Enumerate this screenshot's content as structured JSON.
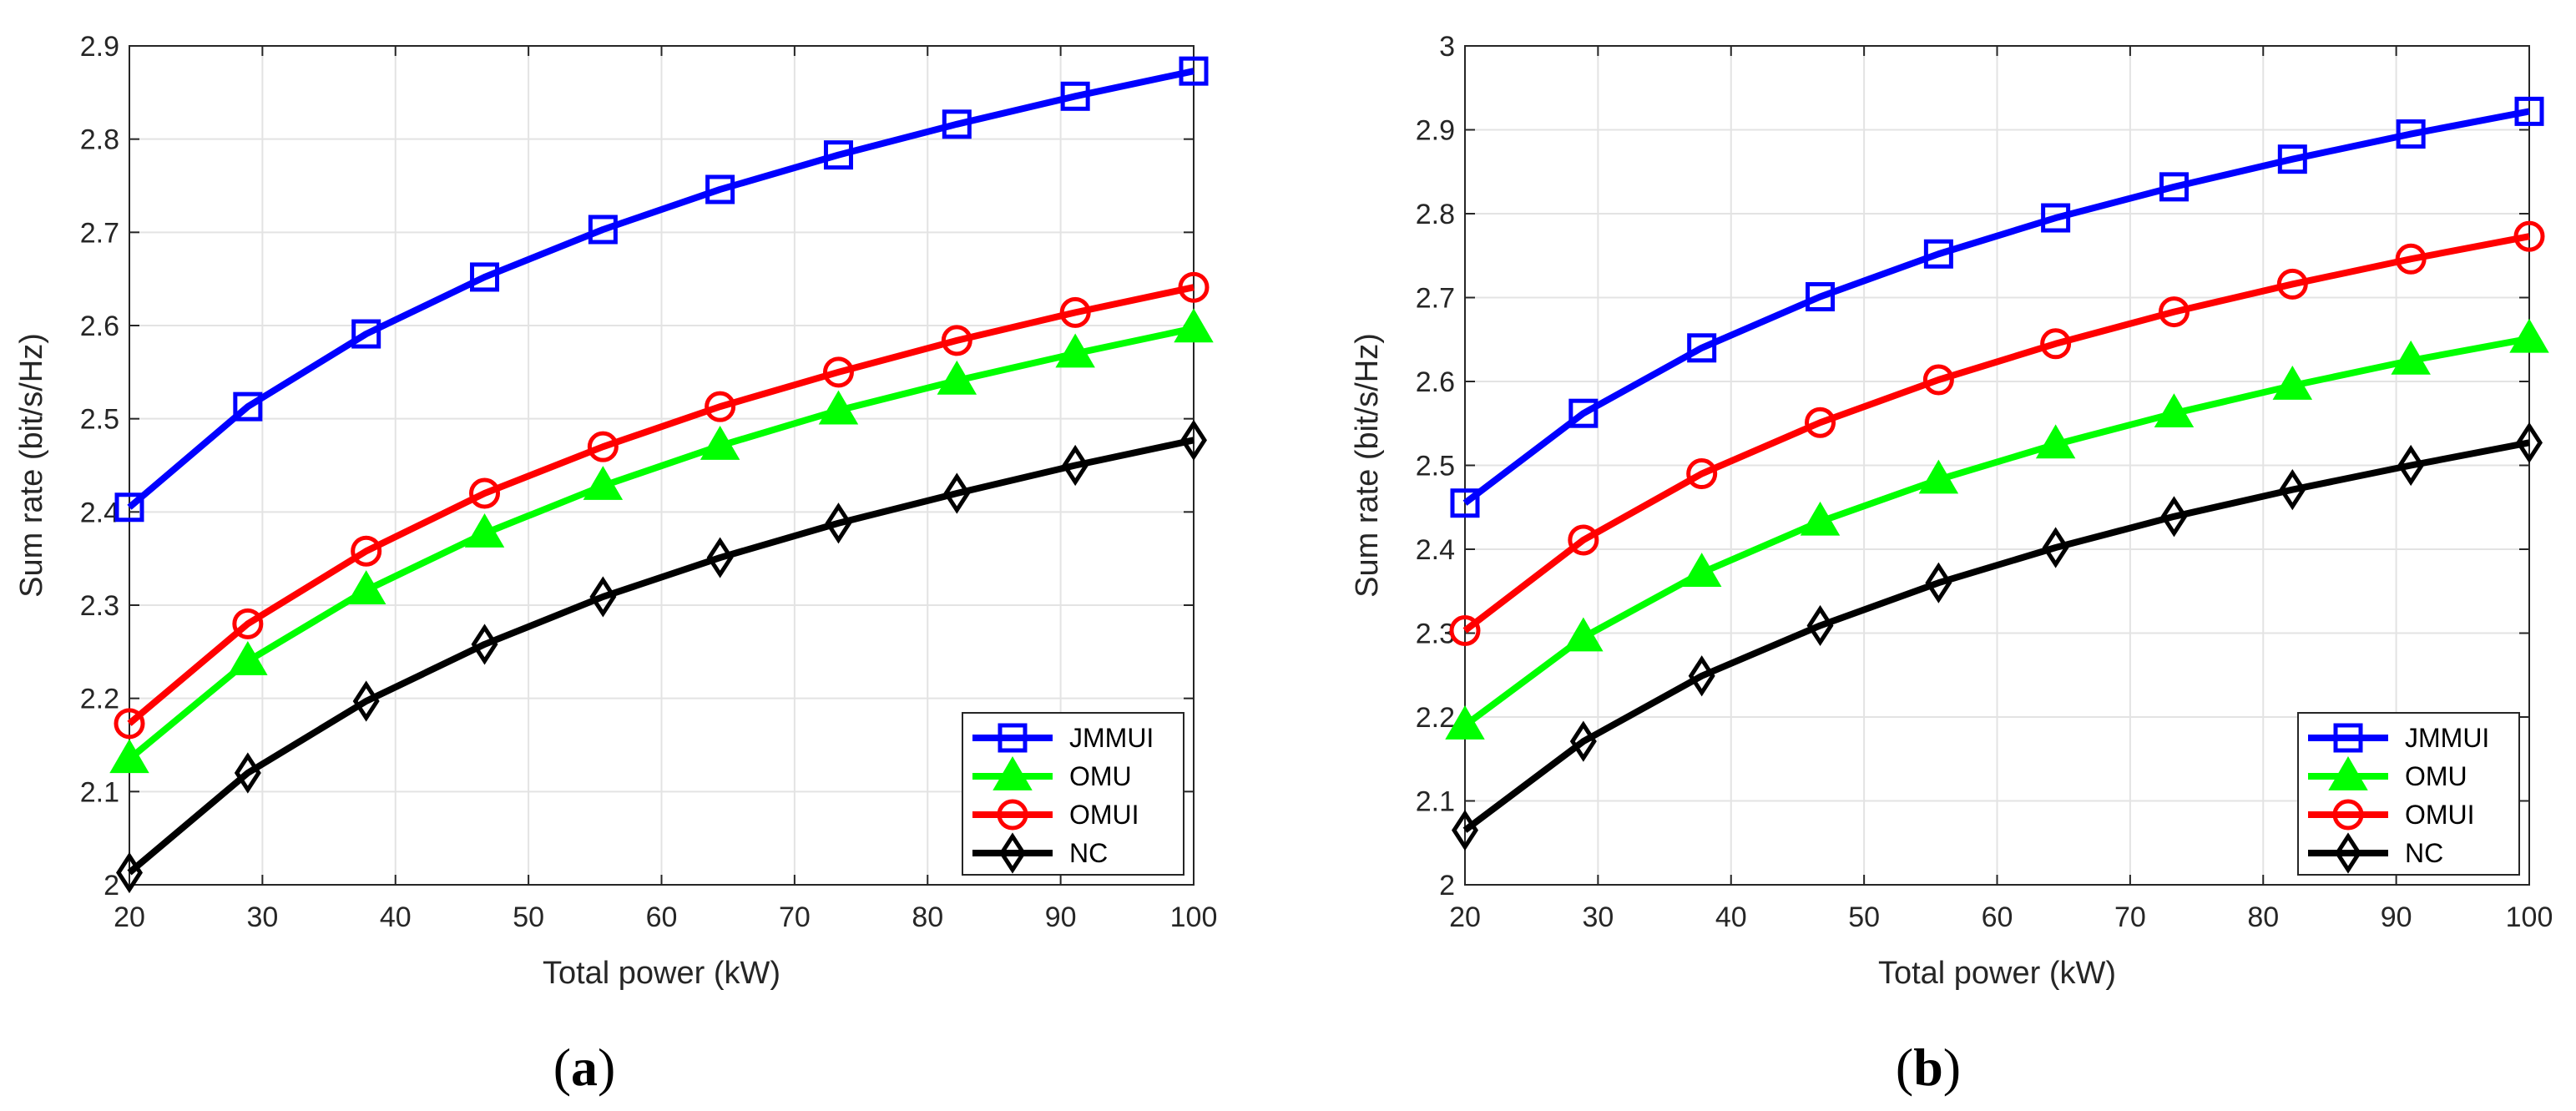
{
  "chart_data": [
    {
      "type": "line",
      "panel_label": "a",
      "xlabel": "Total power (kW)",
      "ylabel": "Sum rate (bit/s/Hz)",
      "xlim": [
        20,
        100
      ],
      "ylim": [
        2.0,
        2.9
      ],
      "xticks": [
        20,
        30,
        40,
        50,
        60,
        70,
        80,
        90,
        100
      ],
      "xtick_labels": [
        "20",
        "30",
        "40",
        "50",
        "60",
        "70",
        "80",
        "90",
        "100"
      ],
      "yticks": [
        2.0,
        2.1,
        2.2,
        2.3,
        2.4,
        2.5,
        2.6,
        2.7,
        2.8,
        2.9
      ],
      "ytick_labels": [
        "2",
        "2.1",
        "2.2",
        "2.3",
        "2.4",
        "2.5",
        "2.6",
        "2.7",
        "2.8",
        "2.9"
      ],
      "grid": true,
      "legend_location": "bottom-right",
      "x": [
        20,
        28.9,
        37.8,
        46.7,
        55.6,
        64.4,
        73.3,
        82.2,
        91.1,
        100
      ],
      "series": [
        {
          "name": "JMMUI",
          "color": "#0000ff",
          "marker": "square",
          "values": [
            2.405,
            2.513,
            2.591,
            2.652,
            2.703,
            2.746,
            2.783,
            2.816,
            2.846,
            2.873
          ]
        },
        {
          "name": "OMU",
          "color": "#00ff00",
          "marker": "triangle",
          "values": [
            2.135,
            2.24,
            2.316,
            2.377,
            2.428,
            2.471,
            2.509,
            2.541,
            2.57,
            2.597
          ]
        },
        {
          "name": "OMUI",
          "color": "#ff0000",
          "marker": "circle",
          "values": [
            2.173,
            2.28,
            2.358,
            2.42,
            2.47,
            2.513,
            2.55,
            2.584,
            2.614,
            2.641
          ]
        },
        {
          "name": "NC",
          "color": "#000000",
          "marker": "diamond",
          "values": [
            2.013,
            2.12,
            2.197,
            2.258,
            2.309,
            2.351,
            2.388,
            2.42,
            2.45,
            2.477
          ]
        }
      ]
    },
    {
      "type": "line",
      "panel_label": "b",
      "xlabel": "Total power (kW)",
      "ylabel": "Sum rate (bit/s/Hz)",
      "xlim": [
        20,
        100
      ],
      "ylim": [
        2.0,
        3.0
      ],
      "xticks": [
        20,
        30,
        40,
        50,
        60,
        70,
        80,
        90,
        100
      ],
      "xtick_labels": [
        "20",
        "30",
        "40",
        "50",
        "60",
        "70",
        "80",
        "90",
        "100"
      ],
      "yticks": [
        2.0,
        2.1,
        2.2,
        2.3,
        2.4,
        2.5,
        2.6,
        2.7,
        2.8,
        2.9,
        3.0
      ],
      "ytick_labels": [
        "2",
        "2.1",
        "2.2",
        "2.3",
        "2.4",
        "2.5",
        "2.6",
        "2.7",
        "2.8",
        "2.9",
        "3"
      ],
      "grid": true,
      "legend_location": "bottom-right",
      "x": [
        20,
        28.9,
        37.8,
        46.7,
        55.6,
        64.4,
        73.3,
        82.2,
        91.1,
        100
      ],
      "series": [
        {
          "name": "JMMUI",
          "color": "#0000ff",
          "marker": "square",
          "values": [
            2.455,
            2.562,
            2.64,
            2.701,
            2.752,
            2.795,
            2.832,
            2.865,
            2.895,
            2.922
          ]
        },
        {
          "name": "OMU",
          "color": "#00ff00",
          "marker": "triangle",
          "values": [
            2.19,
            2.295,
            2.372,
            2.433,
            2.483,
            2.525,
            2.562,
            2.595,
            2.625,
            2.651
          ]
        },
        {
          "name": "OMUI",
          "color": "#ff0000",
          "marker": "circle",
          "values": [
            2.303,
            2.411,
            2.49,
            2.551,
            2.602,
            2.645,
            2.683,
            2.716,
            2.746,
            2.773
          ]
        },
        {
          "name": "NC",
          "color": "#000000",
          "marker": "diamond",
          "values": [
            2.065,
            2.171,
            2.249,
            2.309,
            2.36,
            2.402,
            2.439,
            2.471,
            2.5,
            2.527
          ]
        }
      ]
    }
  ]
}
